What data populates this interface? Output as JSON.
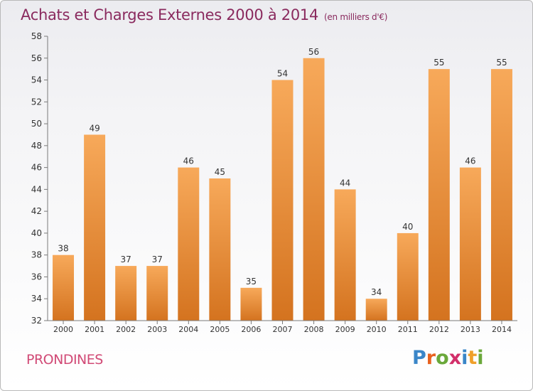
{
  "header": {
    "title": "Achats et Charges Externes 2000 à 2014",
    "subtitle": "(en milliers d'€)"
  },
  "footer": {
    "commune": "PRONDINES",
    "logo_letters": [
      {
        "ch": "P",
        "color": "#3a86c8"
      },
      {
        "ch": "r",
        "color": "#e8621f"
      },
      {
        "ch": "o",
        "color": "#6aa83a"
      },
      {
        "ch": "x",
        "color": "#d22f6a"
      },
      {
        "ch": "i",
        "color": "#3a86c8"
      },
      {
        "ch": "t",
        "color": "#f0a02a"
      },
      {
        "ch": "i",
        "color": "#6aa83a"
      }
    ]
  },
  "chart_data": {
    "type": "bar",
    "categories": [
      "2000",
      "2001",
      "2002",
      "2003",
      "2004",
      "2005",
      "2006",
      "2007",
      "2008",
      "2009",
      "2010",
      "2011",
      "2012",
      "2013",
      "2014"
    ],
    "values": [
      38,
      49,
      37,
      37,
      46,
      45,
      35,
      54,
      56,
      44,
      34,
      40,
      55,
      46,
      55
    ],
    "title": "Achats et Charges Externes 2000 à 2014",
    "subtitle": "(en milliers d'€)",
    "xlabel": "",
    "ylabel": "",
    "ylim": [
      32,
      58
    ],
    "yticks": [
      32,
      34,
      36,
      38,
      40,
      42,
      44,
      46,
      48,
      50,
      52,
      54,
      56,
      58
    ],
    "grid": false,
    "bar_color_top": "#f7a95a",
    "bar_color_bottom": "#d4731f",
    "axis_color": "#7a7a7a",
    "label_color": "#333333"
  }
}
